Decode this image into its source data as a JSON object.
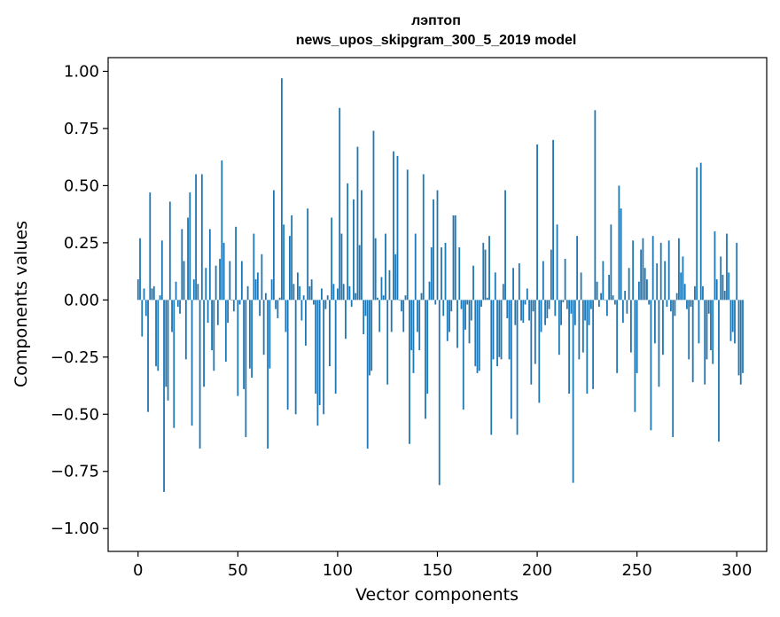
{
  "chart_data": {
    "type": "bar",
    "title": "лэптоп",
    "subtitle": "news_upos_skipgram_300_5_2019 model",
    "xlabel": "Vector components",
    "ylabel": "Components values",
    "xlim": [
      -15,
      315
    ],
    "ylim": [
      -1.1,
      1.06
    ],
    "xticks": [
      0,
      50,
      100,
      150,
      200,
      250,
      300
    ],
    "xtick_labels": [
      "0",
      "50",
      "100",
      "150",
      "200",
      "250",
      "300"
    ],
    "yticks": [
      1.0,
      0.75,
      0.5,
      0.25,
      0.0,
      -0.25,
      -0.5,
      -0.75,
      -1.0
    ],
    "ytick_labels": [
      "1.00",
      "0.75",
      "0.50",
      "0.25",
      "0.00",
      "−0.25",
      "−0.50",
      "−0.75",
      "−1.00"
    ],
    "grid": false,
    "legend": "none",
    "bar_color": "#1f77b4",
    "x_start": 0,
    "values": [
      0.09,
      0.27,
      -0.16,
      0.05,
      -0.07,
      -0.49,
      0.47,
      0.05,
      0.06,
      -0.29,
      -0.31,
      0.02,
      0.26,
      -0.84,
      -0.38,
      -0.44,
      0.43,
      -0.14,
      -0.56,
      0.08,
      -0.03,
      -0.06,
      0.31,
      0.17,
      -0.26,
      0.36,
      0.47,
      -0.55,
      0.09,
      0.55,
      0.07,
      -0.65,
      0.55,
      -0.38,
      0.14,
      -0.1,
      0.31,
      -0.22,
      -0.31,
      0.15,
      -0.11,
      0.18,
      0.61,
      0.25,
      -0.27,
      -0.1,
      0.17,
      0.0,
      -0.05,
      0.32,
      -0.42,
      -0.02,
      0.17,
      -0.39,
      -0.6,
      0.06,
      -0.3,
      -0.34,
      0.29,
      0.09,
      0.12,
      -0.07,
      0.2,
      -0.24,
      0.03,
      -0.65,
      -0.3,
      0.09,
      0.48,
      -0.04,
      -0.08,
      0.01,
      0.97,
      0.33,
      -0.14,
      -0.48,
      0.28,
      0.37,
      0.07,
      -0.5,
      0.12,
      0.06,
      -0.09,
      0.02,
      -0.2,
      0.4,
      0.06,
      0.09,
      -0.02,
      -0.41,
      -0.55,
      -0.46,
      0.05,
      -0.5,
      -0.04,
      0.02,
      -0.29,
      0.36,
      0.07,
      -0.41,
      0.05,
      0.84,
      0.29,
      0.07,
      -0.17,
      0.51,
      0.06,
      -0.03,
      0.44,
      0.03,
      0.67,
      0.24,
      0.48,
      -0.15,
      -0.07,
      -0.65,
      -0.33,
      -0.31,
      0.74,
      0.27,
      0.01,
      -0.14,
      0.1,
      0.02,
      0.29,
      -0.37,
      0.13,
      -0.14,
      0.65,
      0.2,
      0.63,
      0.0,
      -0.05,
      -0.14,
      0.02,
      0.57,
      -0.63,
      -0.22,
      -0.32,
      0.29,
      -0.14,
      -0.22,
      0.03,
      0.55,
      -0.52,
      -0.41,
      0.08,
      0.23,
      0.44,
      -0.02,
      0.48,
      -0.81,
      0.23,
      -0.07,
      0.25,
      -0.18,
      -0.14,
      -0.05,
      0.37,
      0.37,
      -0.21,
      0.23,
      -0.04,
      -0.48,
      -0.13,
      -0.02,
      -0.19,
      -0.09,
      0.15,
      -0.29,
      -0.32,
      -0.31,
      -0.03,
      0.25,
      0.22,
      0.01,
      0.28,
      -0.59,
      -0.26,
      0.12,
      -0.29,
      -0.25,
      -0.26,
      0.07,
      0.48,
      -0.08,
      -0.26,
      -0.52,
      0.14,
      -0.11,
      -0.59,
      0.16,
      -0.09,
      -0.1,
      -0.02,
      0.05,
      -0.09,
      -0.37,
      -0.05,
      -0.28,
      0.68,
      -0.45,
      -0.14,
      0.17,
      -0.11,
      -0.08,
      -0.04,
      0.22,
      0.7,
      -0.07,
      0.33,
      -0.24,
      -0.11,
      -0.01,
      0.18,
      -0.04,
      -0.41,
      -0.06,
      -0.8,
      -0.11,
      0.28,
      -0.26,
      0.12,
      -0.23,
      -0.09,
      -0.41,
      -0.11,
      -0.04,
      -0.39,
      0.83,
      0.08,
      -0.03,
      0.03,
      0.17,
      0.0,
      -0.07,
      0.11,
      0.33,
      0.02,
      -0.02,
      -0.32,
      0.5,
      0.4,
      -0.1,
      0.04,
      -0.06,
      0.14,
      -0.23,
      0.26,
      -0.49,
      -0.32,
      0.08,
      0.22,
      0.27,
      0.14,
      0.09,
      -0.02,
      -0.57,
      0.28,
      -0.19,
      0.16,
      -0.38,
      0.25,
      -0.24,
      0.17,
      -0.03,
      0.26,
      -0.05,
      -0.6,
      -0.07,
      0.03,
      0.27,
      0.12,
      0.19,
      0.07,
      -0.04,
      -0.26,
      -0.03,
      -0.36,
      0.06,
      0.58,
      -0.19,
      0.6,
      0.06,
      -0.37,
      -0.26,
      -0.06,
      -0.22,
      -0.28,
      0.3,
      0.09,
      -0.62,
      0.19,
      0.11,
      0.04,
      0.29,
      0.12,
      -0.18,
      -0.14,
      -0.19,
      0.25,
      -0.33,
      -0.37,
      -0.32
    ]
  }
}
